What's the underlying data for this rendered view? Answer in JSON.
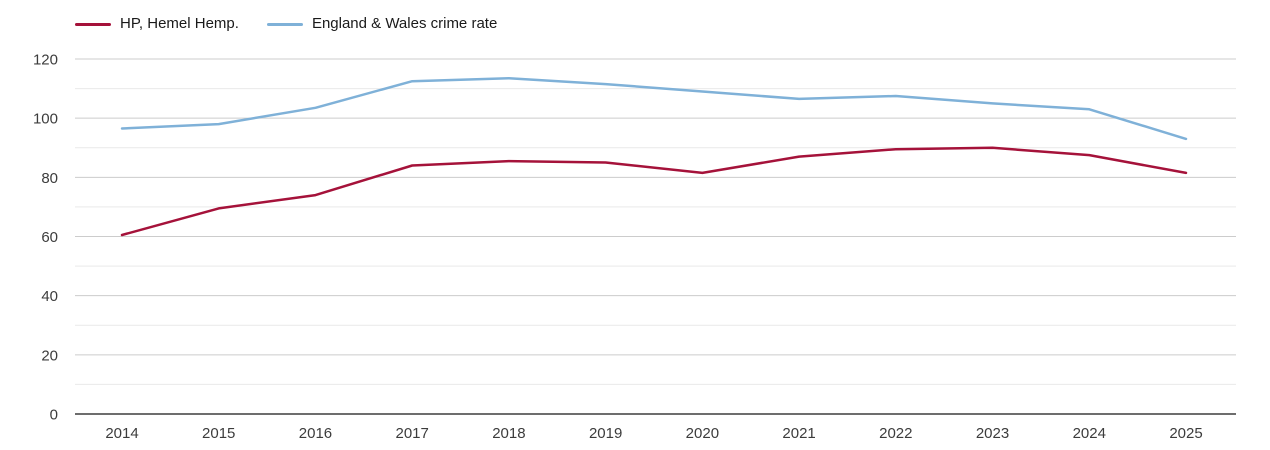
{
  "legend": {
    "items": [
      {
        "label": "HP, Hemel Hemp.",
        "color": "#a5123a"
      },
      {
        "label": "England & Wales crime rate",
        "color": "#7fb1d8"
      }
    ]
  },
  "chart_data": {
    "type": "line",
    "title": "",
    "xlabel": "",
    "ylabel": "",
    "x": [
      "2014",
      "2015",
      "2016",
      "2017",
      "2018",
      "2019",
      "2020",
      "2021",
      "2022",
      "2023",
      "2024",
      "2025"
    ],
    "series": [
      {
        "name": "HP, Hemel Hemp.",
        "color": "#a5123a",
        "values": [
          60.5,
          69.5,
          74,
          84,
          85.5,
          85,
          81.5,
          87,
          89.5,
          90,
          87.5,
          81.5
        ]
      },
      {
        "name": "England & Wales crime rate",
        "color": "#7fb1d8",
        "values": [
          96.5,
          98,
          103.5,
          112.5,
          113.5,
          111.5,
          109,
          106.5,
          107.5,
          105,
          103,
          93
        ]
      }
    ],
    "ylim": [
      0,
      120
    ],
    "yticks": [
      0,
      20,
      40,
      60,
      80,
      100,
      120
    ],
    "y_minor_step": 10,
    "grid": true,
    "legend_position": "top-left"
  },
  "style": {
    "grid_major_color": "#cccccc",
    "grid_minor_color": "#e9e9e9",
    "axis_color": "#3d3d3d",
    "tick_label_color": "#3c3c3c"
  }
}
